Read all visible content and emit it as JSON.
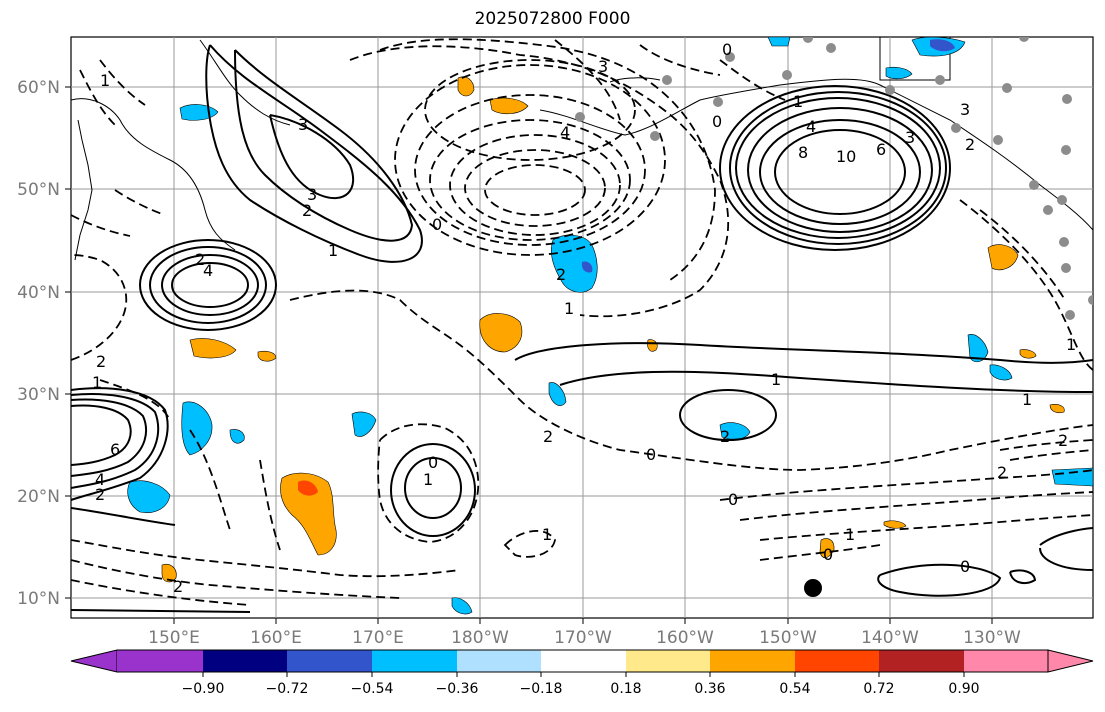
{
  "title": "2025072800 F000",
  "lon_labels": [
    "150°E",
    "160°E",
    "170°E",
    "180°W",
    "170°W",
    "160°W",
    "150°W",
    "140°W",
    "130°W"
  ],
  "lat_labels": [
    "60°N",
    "50°N",
    "40°N",
    "30°N",
    "20°N",
    "10°N"
  ],
  "colorbar": {
    "ticks": [
      "−0.90",
      "−0.72",
      "−0.54",
      "−0.36",
      "−0.18",
      "0.18",
      "0.36",
      "0.54",
      "0.72",
      "0.90"
    ],
    "colors": [
      "#9933cc",
      "#000080",
      "#3355cc",
      "#00bfff",
      "#b0e0ff",
      "#ffffff",
      "#ffe98a",
      "#ffa500",
      "#ff4500",
      "#b22222",
      "#ff88aa"
    ]
  },
  "contour_labels": [
    "1",
    "3",
    "0",
    "3",
    "4",
    "0",
    "1",
    "4",
    "8",
    "10",
    "6",
    "3",
    "2",
    "3",
    "2",
    "3",
    "0",
    "1",
    "2",
    "4",
    "2",
    "1",
    "1",
    "2",
    "0",
    "2",
    "6",
    "4",
    "2",
    "1",
    "2",
    "0",
    "1",
    "1",
    "0",
    "1",
    "1",
    "2",
    "2",
    "0",
    "1",
    "2",
    "0"
  ],
  "colors": {
    "negative": "#00bfff",
    "positive": "#ffa500",
    "strong_positive": "#ff4500",
    "strong_negative": "#3355cc"
  }
}
